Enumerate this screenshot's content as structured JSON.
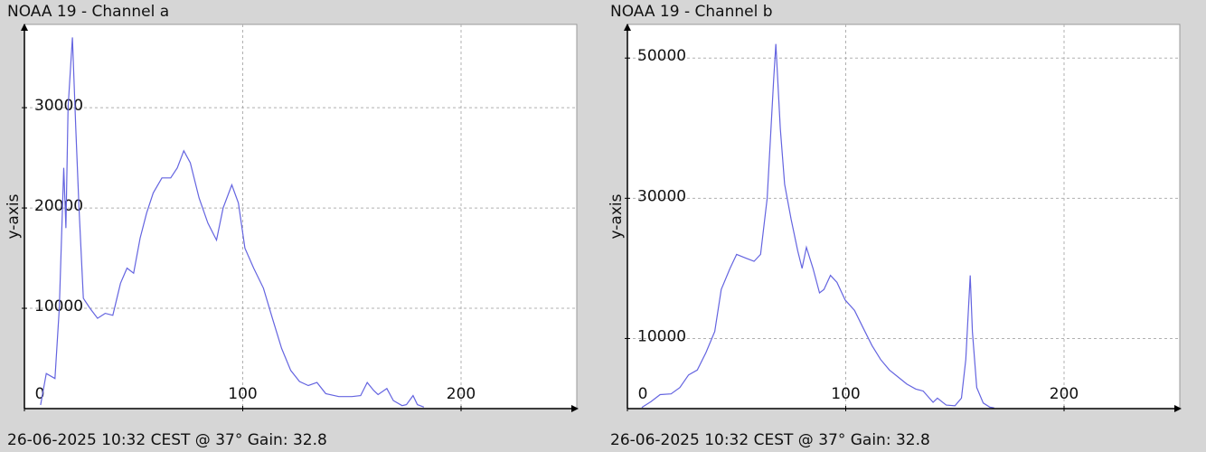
{
  "chart_data": [
    {
      "type": "line",
      "title": "NOAA 19 - Channel a",
      "caption": "26-06-2025 10:32 CEST @ 37° Gain: 32.8",
      "y_label": "y-axis",
      "xlim": [
        0,
        253
      ],
      "ylim": [
        0,
        38300
      ],
      "xticks": [
        0,
        100,
        200
      ],
      "yticks": [
        10000,
        20000,
        30000
      ],
      "grid": true,
      "series": [
        {
          "color": "#6464e0",
          "x": [
            7.4,
            10,
            14,
            16,
            18,
            19,
            20,
            22,
            23.5,
            25,
            27,
            30,
            33.5,
            37,
            40.5,
            44,
            47,
            50,
            53,
            56,
            59,
            63,
            67,
            70,
            73,
            76,
            80,
            84,
            88,
            91,
            95,
            98,
            101,
            105,
            109.5,
            113.6,
            117.8,
            122,
            126,
            130,
            134,
            138,
            144,
            150,
            154,
            157,
            160,
            162,
            166,
            169,
            173,
            175,
            178,
            180,
            183
          ],
          "values": [
            360,
            3500,
            3000,
            10000,
            24000,
            18000,
            30000,
            37000,
            28000,
            20000,
            11000,
            10000,
            9000,
            9500,
            9300,
            12500,
            14000,
            13500,
            17000,
            19500,
            21500,
            23000,
            23000,
            24000,
            25700,
            24500,
            21000,
            18500,
            16800,
            20000,
            22300,
            20500,
            16000,
            14000,
            12000,
            9000,
            6000,
            3800,
            2700,
            2300,
            2600,
            1500,
            1200,
            1200,
            1300,
            2600,
            1800,
            1400,
            2000,
            800,
            300,
            400,
            1300,
            400,
            150
          ]
        }
      ]
    },
    {
      "type": "line",
      "title": "NOAA 19 - Channel b",
      "caption": "26-06-2025 10:32 CEST @ 37° Gain: 32.8",
      "y_label": "y-axis",
      "xlim": [
        0,
        253
      ],
      "ylim": [
        0,
        54800
      ],
      "xticks": [
        0,
        100,
        200
      ],
      "yticks": [
        10000,
        30000,
        50000
      ],
      "grid": true,
      "series": [
        {
          "color": "#6464e0",
          "x": [
            6.6,
            10.8,
            15,
            20,
            24,
            28,
            32,
            36,
            40,
            43,
            47,
            50,
            54,
            58,
            61,
            64,
            67,
            68,
            70,
            72,
            75,
            78,
            80,
            82,
            85,
            88,
            90,
            93,
            96,
            99.7,
            104,
            108,
            112,
            116,
            120,
            124,
            128,
            132,
            135.5,
            140,
            142,
            146,
            150,
            153,
            155,
            157,
            158,
            160,
            163,
            166,
            168
          ],
          "values": [
            150,
            1000,
            2000,
            2100,
            3000,
            4800,
            5500,
            8000,
            11000,
            17000,
            20000,
            22000,
            21500,
            21000,
            22000,
            30000,
            47000,
            52000,
            40000,
            32000,
            27000,
            22500,
            20000,
            23000,
            20000,
            16500,
            17000,
            19000,
            18000,
            15500,
            14000,
            11500,
            9000,
            7000,
            5500,
            4500,
            3500,
            2800,
            2500,
            900,
            1500,
            500,
            400,
            1500,
            7000,
            19000,
            11000,
            3000,
            800,
            200,
            100
          ]
        }
      ]
    }
  ]
}
